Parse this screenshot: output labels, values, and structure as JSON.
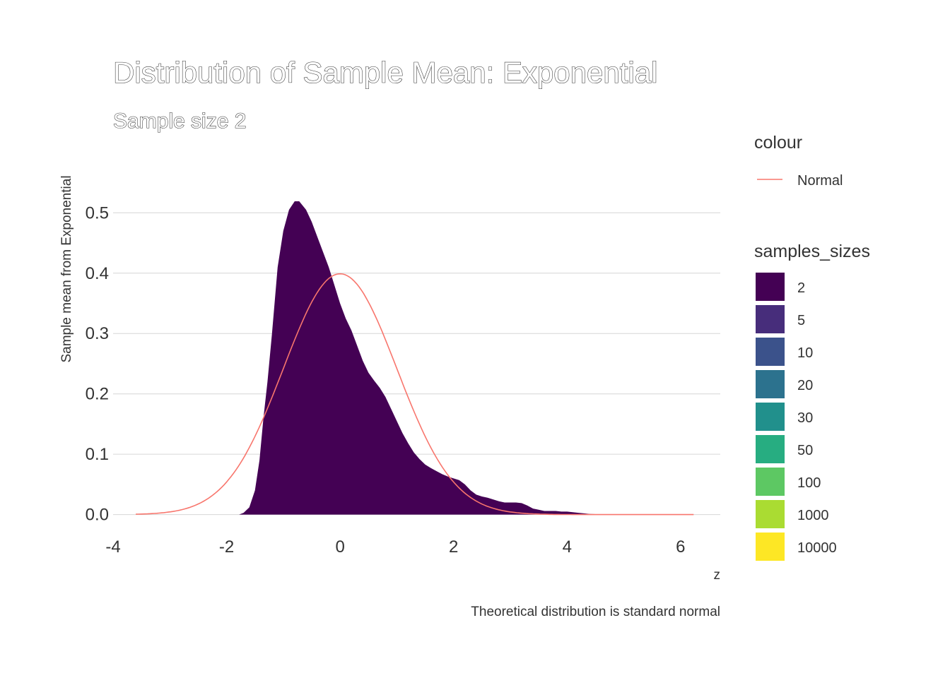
{
  "chart_data": {
    "type": "area",
    "title": "Distribution of Sample Mean: Exponential",
    "subtitle": "Sample size 2",
    "xlabel": "z",
    "ylabel": "Sample mean from Exponential",
    "caption": "Theoretical distribution is standard normal",
    "xlim": [
      -4,
      6.7
    ],
    "ylim": [
      -0.025,
      0.56
    ],
    "x_ticks": [
      -4,
      -2,
      0,
      2,
      4,
      6
    ],
    "y_ticks": [
      0.0,
      0.1,
      0.2,
      0.3,
      0.4,
      0.5
    ],
    "x_tick_labels": [
      "-4",
      "-2",
      "0",
      "2",
      "4",
      "6"
    ],
    "y_tick_labels": [
      "0.0",
      "0.1",
      "0.2",
      "0.3",
      "0.4",
      "0.5"
    ],
    "grid": true,
    "legend_placement": "right",
    "density_series": {
      "name": "2",
      "color": "#440154",
      "x": [
        -1.78,
        -1.7,
        -1.6,
        -1.5,
        -1.42,
        -1.35,
        -1.28,
        -1.2,
        -1.1,
        -1.0,
        -0.9,
        -0.8,
        -0.72,
        -0.6,
        -0.5,
        -0.4,
        -0.3,
        -0.2,
        -0.1,
        0.0,
        0.1,
        0.2,
        0.3,
        0.4,
        0.5,
        0.6,
        0.7,
        0.8,
        0.9,
        1.0,
        1.1,
        1.2,
        1.3,
        1.4,
        1.5,
        1.6,
        1.7,
        1.8,
        1.9,
        2.0,
        2.1,
        2.2,
        2.3,
        2.4,
        2.5,
        2.6,
        2.7,
        2.8,
        2.9,
        3.0,
        3.1,
        3.2,
        3.3,
        3.4,
        3.5,
        3.6,
        3.7,
        3.8,
        3.9,
        4.0,
        4.1,
        4.2,
        4.3,
        4.4,
        4.6,
        5.0,
        5.5,
        6.0,
        6.23
      ],
      "y": [
        0.0,
        0.003,
        0.012,
        0.04,
        0.09,
        0.16,
        0.22,
        0.3,
        0.41,
        0.47,
        0.505,
        0.519,
        0.519,
        0.505,
        0.485,
        0.46,
        0.435,
        0.41,
        0.38,
        0.35,
        0.325,
        0.305,
        0.28,
        0.255,
        0.235,
        0.222,
        0.21,
        0.195,
        0.175,
        0.155,
        0.135,
        0.118,
        0.103,
        0.092,
        0.083,
        0.077,
        0.072,
        0.067,
        0.063,
        0.06,
        0.057,
        0.05,
        0.04,
        0.033,
        0.03,
        0.028,
        0.025,
        0.022,
        0.02,
        0.02,
        0.02,
        0.019,
        0.015,
        0.01,
        0.008,
        0.006,
        0.006,
        0.006,
        0.005,
        0.005,
        0.004,
        0.003,
        0.002,
        0.001,
        0.0005,
        0.0002,
        0.0001,
        0.0,
        0.0
      ]
    },
    "normal_curve": {
      "name": "Normal",
      "color": "#F8766D",
      "x_range": [
        -3.6,
        6.23
      ],
      "mean": 0,
      "sd": 1
    },
    "legend": {
      "colour_title": "colour",
      "colour_items": [
        {
          "label": "Normal",
          "color": "#F8766D"
        }
      ],
      "fill_title": "samples_sizes",
      "fill_items": [
        {
          "label": "2",
          "color": "#440154"
        },
        {
          "label": "5",
          "color": "#472D7B"
        },
        {
          "label": "10",
          "color": "#3B528B"
        },
        {
          "label": "20",
          "color": "#2C728E"
        },
        {
          "label": "30",
          "color": "#21908C"
        },
        {
          "label": "50",
          "color": "#27AD81"
        },
        {
          "label": "100",
          "color": "#5DC863"
        },
        {
          "label": "1000",
          "color": "#AADC32"
        },
        {
          "label": "10000",
          "color": "#FDE725"
        }
      ]
    }
  }
}
